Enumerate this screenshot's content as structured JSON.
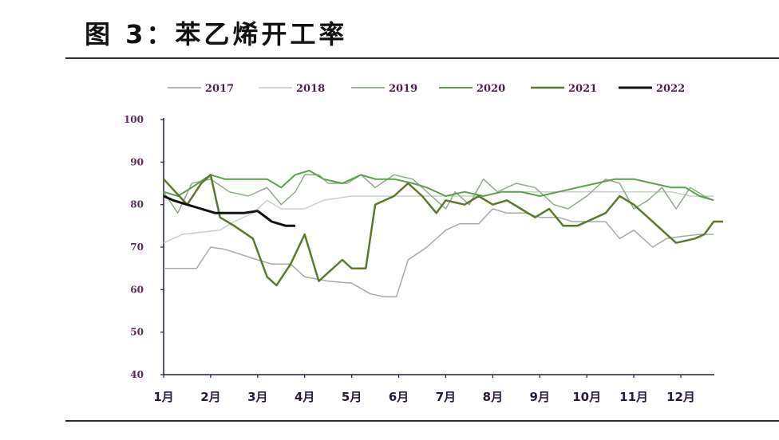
{
  "header": {
    "title": "图 3：苯乙烯开工率"
  },
  "chart_data": {
    "type": "line",
    "title": "图 3：苯乙烯开工率",
    "xlabel": "",
    "ylabel": "",
    "ylim": [
      40,
      100
    ],
    "yticks": [
      40,
      50,
      60,
      70,
      80,
      90,
      100
    ],
    "categories": [
      "1月",
      "2月",
      "3月",
      "4月",
      "5月",
      "6月",
      "7月",
      "8月",
      "9月",
      "10月",
      "11月",
      "12月"
    ],
    "legend_position": "top",
    "grid": false,
    "series": [
      {
        "name": "2017",
        "color": "#a8a8a8",
        "width": 1.5,
        "points": [
          [
            1,
            65
          ],
          [
            1.5,
            65
          ],
          [
            1.7,
            65
          ],
          [
            2,
            70
          ],
          [
            2.3,
            69.5
          ],
          [
            3,
            67
          ],
          [
            3.3,
            66
          ],
          [
            3.7,
            66
          ],
          [
            4,
            63
          ],
          [
            4.5,
            62
          ],
          [
            5,
            61.5
          ],
          [
            5.4,
            59
          ],
          [
            5.7,
            58.3
          ],
          [
            5.95,
            58.3
          ],
          [
            6.2,
            67
          ],
          [
            6.6,
            70
          ],
          [
            7,
            74
          ],
          [
            7.3,
            75.5
          ],
          [
            7.7,
            75.5
          ],
          [
            8,
            79
          ],
          [
            8.3,
            78
          ],
          [
            8.7,
            78
          ],
          [
            9,
            77
          ],
          [
            9.4,
            77
          ],
          [
            9.7,
            76
          ],
          [
            10,
            76
          ],
          [
            10.4,
            76
          ],
          [
            10.7,
            72
          ],
          [
            11,
            74
          ],
          [
            11.4,
            70
          ],
          [
            11.7,
            72
          ],
          [
            12,
            72.5
          ],
          [
            12.4,
            73
          ],
          [
            12.7,
            73
          ]
        ]
      },
      {
        "name": "2018",
        "color": "#c8cfc8",
        "width": 1.5,
        "points": [
          [
            1,
            71
          ],
          [
            1.4,
            73
          ],
          [
            1.8,
            73.5
          ],
          [
            2.2,
            74
          ],
          [
            2.5,
            76
          ],
          [
            2.9,
            78
          ],
          [
            3.2,
            81
          ],
          [
            3.5,
            79
          ],
          [
            4,
            79
          ],
          [
            4.4,
            81
          ],
          [
            5,
            82
          ],
          [
            5.5,
            82
          ],
          [
            6,
            82
          ],
          [
            6.5,
            82
          ],
          [
            7,
            82
          ],
          [
            7.4,
            82
          ],
          [
            7.8,
            82
          ],
          [
            8.2,
            83
          ],
          [
            8.6,
            83
          ],
          [
            9,
            83
          ],
          [
            9.4,
            83
          ],
          [
            9.8,
            83
          ],
          [
            10.2,
            83
          ],
          [
            10.6,
            83
          ],
          [
            11,
            83
          ],
          [
            11.4,
            83
          ],
          [
            11.8,
            83
          ],
          [
            12.2,
            82
          ],
          [
            12.7,
            82
          ]
        ]
      },
      {
        "name": "2019",
        "color": "#8faa88",
        "width": 1.5,
        "points": [
          [
            1,
            83
          ],
          [
            1.3,
            78
          ],
          [
            1.6,
            85
          ],
          [
            2,
            86
          ],
          [
            2.4,
            83
          ],
          [
            2.8,
            82
          ],
          [
            3.2,
            84
          ],
          [
            3.5,
            80
          ],
          [
            3.8,
            83
          ],
          [
            4,
            87
          ],
          [
            4.3,
            87
          ],
          [
            4.5,
            85
          ],
          [
            4.9,
            85
          ],
          [
            5.2,
            87
          ],
          [
            5.5,
            84
          ],
          [
            5.9,
            87
          ],
          [
            6.3,
            86
          ],
          [
            6.7,
            82
          ],
          [
            7,
            79
          ],
          [
            7.2,
            83
          ],
          [
            7.5,
            80
          ],
          [
            7.8,
            86
          ],
          [
            8.1,
            83
          ],
          [
            8.5,
            85
          ],
          [
            8.9,
            84
          ],
          [
            9.3,
            80
          ],
          [
            9.6,
            79
          ],
          [
            10,
            82
          ],
          [
            10.4,
            86
          ],
          [
            10.7,
            85
          ],
          [
            11,
            79
          ],
          [
            11.3,
            81
          ],
          [
            11.6,
            84
          ],
          [
            11.9,
            79
          ],
          [
            12.2,
            84
          ],
          [
            12.5,
            82
          ],
          [
            12.7,
            81
          ]
        ]
      },
      {
        "name": "2020",
        "color": "#5aa048",
        "width": 2,
        "points": [
          [
            1,
            83
          ],
          [
            1.3,
            82
          ],
          [
            1.6,
            84
          ],
          [
            2,
            87
          ],
          [
            2.3,
            86
          ],
          [
            2.8,
            86
          ],
          [
            3.2,
            86
          ],
          [
            3.5,
            84
          ],
          [
            3.8,
            87
          ],
          [
            4.1,
            88
          ],
          [
            4.4,
            86
          ],
          [
            4.8,
            85
          ],
          [
            5.2,
            87
          ],
          [
            5.5,
            86
          ],
          [
            5.9,
            86
          ],
          [
            6.3,
            85
          ],
          [
            6.6,
            84
          ],
          [
            7,
            82
          ],
          [
            7.4,
            83
          ],
          [
            7.8,
            82
          ],
          [
            8.2,
            83
          ],
          [
            8.6,
            83
          ],
          [
            9,
            82
          ],
          [
            9.4,
            83
          ],
          [
            9.8,
            84
          ],
          [
            10.2,
            85
          ],
          [
            10.6,
            86
          ],
          [
            11,
            86
          ],
          [
            11.4,
            85
          ],
          [
            11.8,
            84
          ],
          [
            12.1,
            84
          ],
          [
            12.4,
            82
          ],
          [
            12.7,
            81
          ]
        ]
      },
      {
        "name": "2021",
        "color": "#5a7a2a",
        "width": 2.5,
        "points": [
          [
            1,
            86
          ],
          [
            1.5,
            80
          ],
          [
            1.8,
            85
          ],
          [
            2,
            87
          ],
          [
            2.2,
            77
          ],
          [
            2.5,
            75
          ],
          [
            2.9,
            72
          ],
          [
            3.2,
            63
          ],
          [
            3.4,
            61
          ],
          [
            3.7,
            66
          ],
          [
            4,
            73
          ],
          [
            4.3,
            62
          ],
          [
            4.8,
            67
          ],
          [
            5,
            65
          ],
          [
            5.3,
            65
          ],
          [
            5.5,
            80
          ],
          [
            5.9,
            82
          ],
          [
            6.2,
            85
          ],
          [
            6.5,
            82
          ],
          [
            6.8,
            78
          ],
          [
            7,
            81
          ],
          [
            7.4,
            80
          ],
          [
            7.7,
            82
          ],
          [
            8,
            80
          ],
          [
            8.3,
            81
          ],
          [
            8.6,
            79
          ],
          [
            8.9,
            77
          ],
          [
            9.2,
            79
          ],
          [
            9.5,
            75
          ],
          [
            9.8,
            75
          ],
          [
            10,
            76
          ],
          [
            10.4,
            78
          ],
          [
            10.7,
            82
          ],
          [
            11,
            80
          ],
          [
            11.3,
            77
          ],
          [
            11.6,
            74
          ],
          [
            11.9,
            71
          ],
          [
            12.3,
            72
          ],
          [
            12.5,
            73
          ],
          [
            12.7,
            76
          ],
          [
            12.9,
            76
          ]
        ]
      },
      {
        "name": "2022",
        "color": "#111111",
        "width": 3,
        "points": [
          [
            1,
            82
          ],
          [
            1.2,
            81
          ],
          [
            1.5,
            80
          ],
          [
            1.8,
            79
          ],
          [
            2.1,
            78
          ],
          [
            2.4,
            78
          ],
          [
            2.7,
            78
          ],
          [
            3,
            78.5
          ],
          [
            3.3,
            76
          ],
          [
            3.6,
            75
          ],
          [
            3.8,
            75
          ]
        ]
      }
    ]
  },
  "legend": [
    "2017",
    "2018",
    "2019",
    "2020",
    "2021",
    "2022"
  ]
}
